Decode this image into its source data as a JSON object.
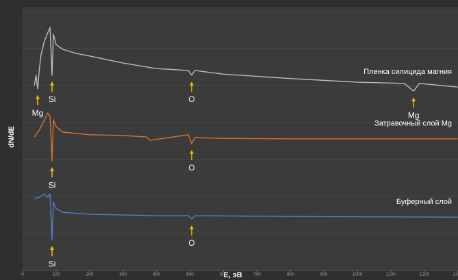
{
  "chart_data": {
    "type": "line",
    "xlabel": "E, эВ",
    "ylabel": "dN/dE",
    "xlim": [
      0,
      1300
    ],
    "xticks": [
      0,
      100,
      200,
      300,
      400,
      500,
      600,
      700,
      800,
      900,
      1000,
      1100,
      1200,
      1300
    ],
    "ylim": [
      0,
      7
    ],
    "yticks": [
      0,
      1,
      2,
      3,
      4,
      5,
      6,
      7
    ],
    "grid": true,
    "series": [
      {
        "name": "Пленка силицида магния",
        "color": "#bdbdbd",
        "x": [
          35,
          40,
          45,
          50,
          55,
          65,
          75,
          82,
          88,
          92,
          100,
          120,
          160,
          200,
          300,
          400,
          495,
          505,
          515,
          600,
          800,
          1000,
          1140,
          1168,
          1185,
          1300
        ],
        "values": [
          5.0,
          5.28,
          4.91,
          5.46,
          5.83,
          6.2,
          6.43,
          6.57,
          5.28,
          6.39,
          6.11,
          5.98,
          5.87,
          5.8,
          5.61,
          5.46,
          5.41,
          5.28,
          5.41,
          5.31,
          5.19,
          5.09,
          5.06,
          4.85,
          5.06,
          4.96
        ]
      },
      {
        "name": "Затравочный слой Mg",
        "color": "#d9732c",
        "x": [
          35,
          50,
          65,
          75,
          82,
          88,
          92,
          100,
          120,
          200,
          300,
          370,
          380,
          450,
          495,
          505,
          515,
          600,
          800,
          1000,
          1300
        ],
        "values": [
          3.61,
          3.8,
          4.07,
          4.26,
          4.17,
          2.96,
          4.07,
          3.89,
          3.74,
          3.67,
          3.65,
          3.61,
          3.52,
          3.61,
          3.67,
          3.43,
          3.59,
          3.57,
          3.56,
          3.56,
          3.56
        ]
      },
      {
        "name": "Буферный слой",
        "color": "#4f82c2",
        "x": [
          35,
          50,
          65,
          75,
          82,
          88,
          92,
          100,
          120,
          200,
          400,
          495,
          505,
          515,
          800,
          1300
        ],
        "values": [
          1.94,
          1.98,
          2.07,
          1.98,
          2.07,
          0.83,
          1.85,
          1.67,
          1.57,
          1.52,
          1.48,
          1.48,
          1.39,
          1.48,
          1.46,
          1.44
        ]
      }
    ],
    "annotations": [
      {
        "text": "Mg",
        "x": 45,
        "series": 0
      },
      {
        "text": "Si",
        "x": 88,
        "series": 0
      },
      {
        "text": "O",
        "x": 505,
        "series": 0
      },
      {
        "text": "Mg",
        "x": 1168,
        "series": 0
      },
      {
        "text": "Si",
        "x": 88,
        "series": 1
      },
      {
        "text": "O",
        "x": 505,
        "series": 1
      },
      {
        "text": "Si",
        "x": 88,
        "series": 2
      },
      {
        "text": "O",
        "x": 505,
        "series": 2
      }
    ]
  }
}
